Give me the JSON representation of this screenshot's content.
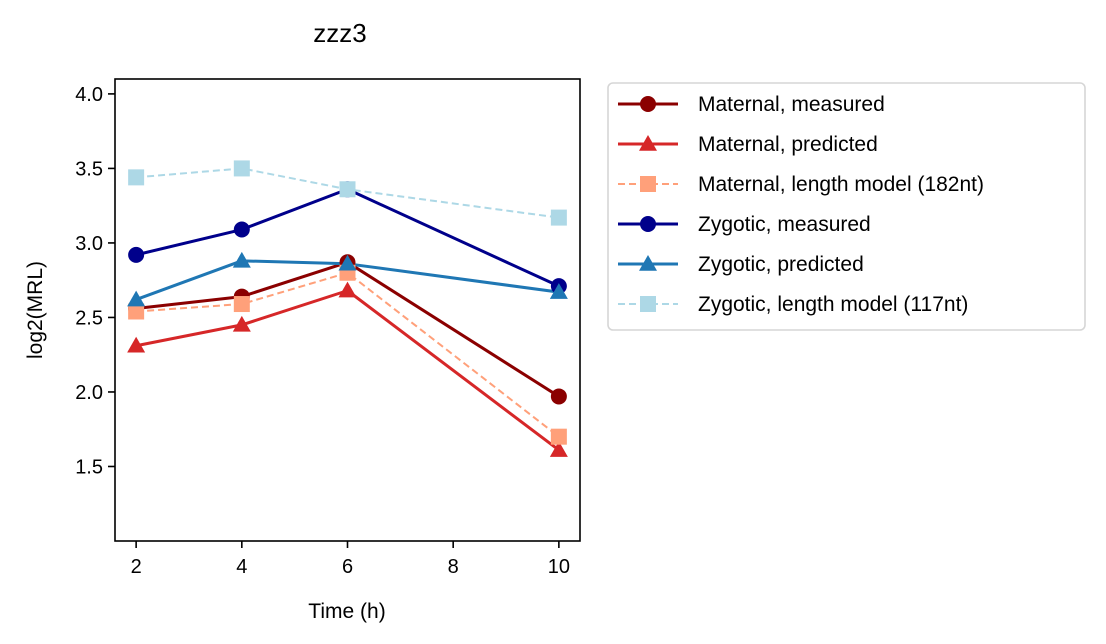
{
  "chart_data": {
    "type": "line",
    "title": "zzz3",
    "xlabel": "Time (h)",
    "ylabel": "log2(MRL)",
    "x": [
      2,
      4,
      6,
      10
    ],
    "xlim": [
      1.6,
      10.4
    ],
    "ylim": [
      1.0,
      4.1
    ],
    "xticks": [
      2,
      4,
      6,
      8,
      10
    ],
    "yticks": [
      1.5,
      2.0,
      2.5,
      3.0,
      3.5,
      4.0
    ],
    "xtick_labels": [
      "2",
      "4",
      "6",
      "8",
      "10"
    ],
    "ytick_labels": [
      "1.5",
      "2.0",
      "2.5",
      "3.0",
      "3.5",
      "4.0"
    ],
    "grid": false,
    "legend_position": "outside-right",
    "series": [
      {
        "name": "Maternal, measured",
        "values": [
          2.56,
          2.64,
          2.87,
          1.97
        ],
        "color": "#8b0000",
        "marker": "circle",
        "dash": false
      },
      {
        "name": "Maternal, predicted",
        "values": [
          2.31,
          2.45,
          2.68,
          1.61
        ],
        "color": "#d62728",
        "marker": "triangle",
        "dash": false
      },
      {
        "name": "Maternal, length model (182nt)",
        "values": [
          2.54,
          2.59,
          2.8,
          1.7
        ],
        "color": "#ffa07a",
        "marker": "square",
        "dash": true
      },
      {
        "name": "Zygotic, measured",
        "values": [
          2.92,
          3.09,
          3.36,
          2.71
        ],
        "color": "#00008b",
        "marker": "circle",
        "dash": false
      },
      {
        "name": "Zygotic, predicted",
        "values": [
          2.62,
          2.88,
          2.86,
          2.67
        ],
        "color": "#1f77b4",
        "marker": "triangle",
        "dash": false
      },
      {
        "name": "Zygotic, length model (117nt)",
        "values": [
          3.44,
          3.5,
          3.36,
          3.17
        ],
        "color": "#add8e6",
        "marker": "square",
        "dash": true
      }
    ]
  }
}
